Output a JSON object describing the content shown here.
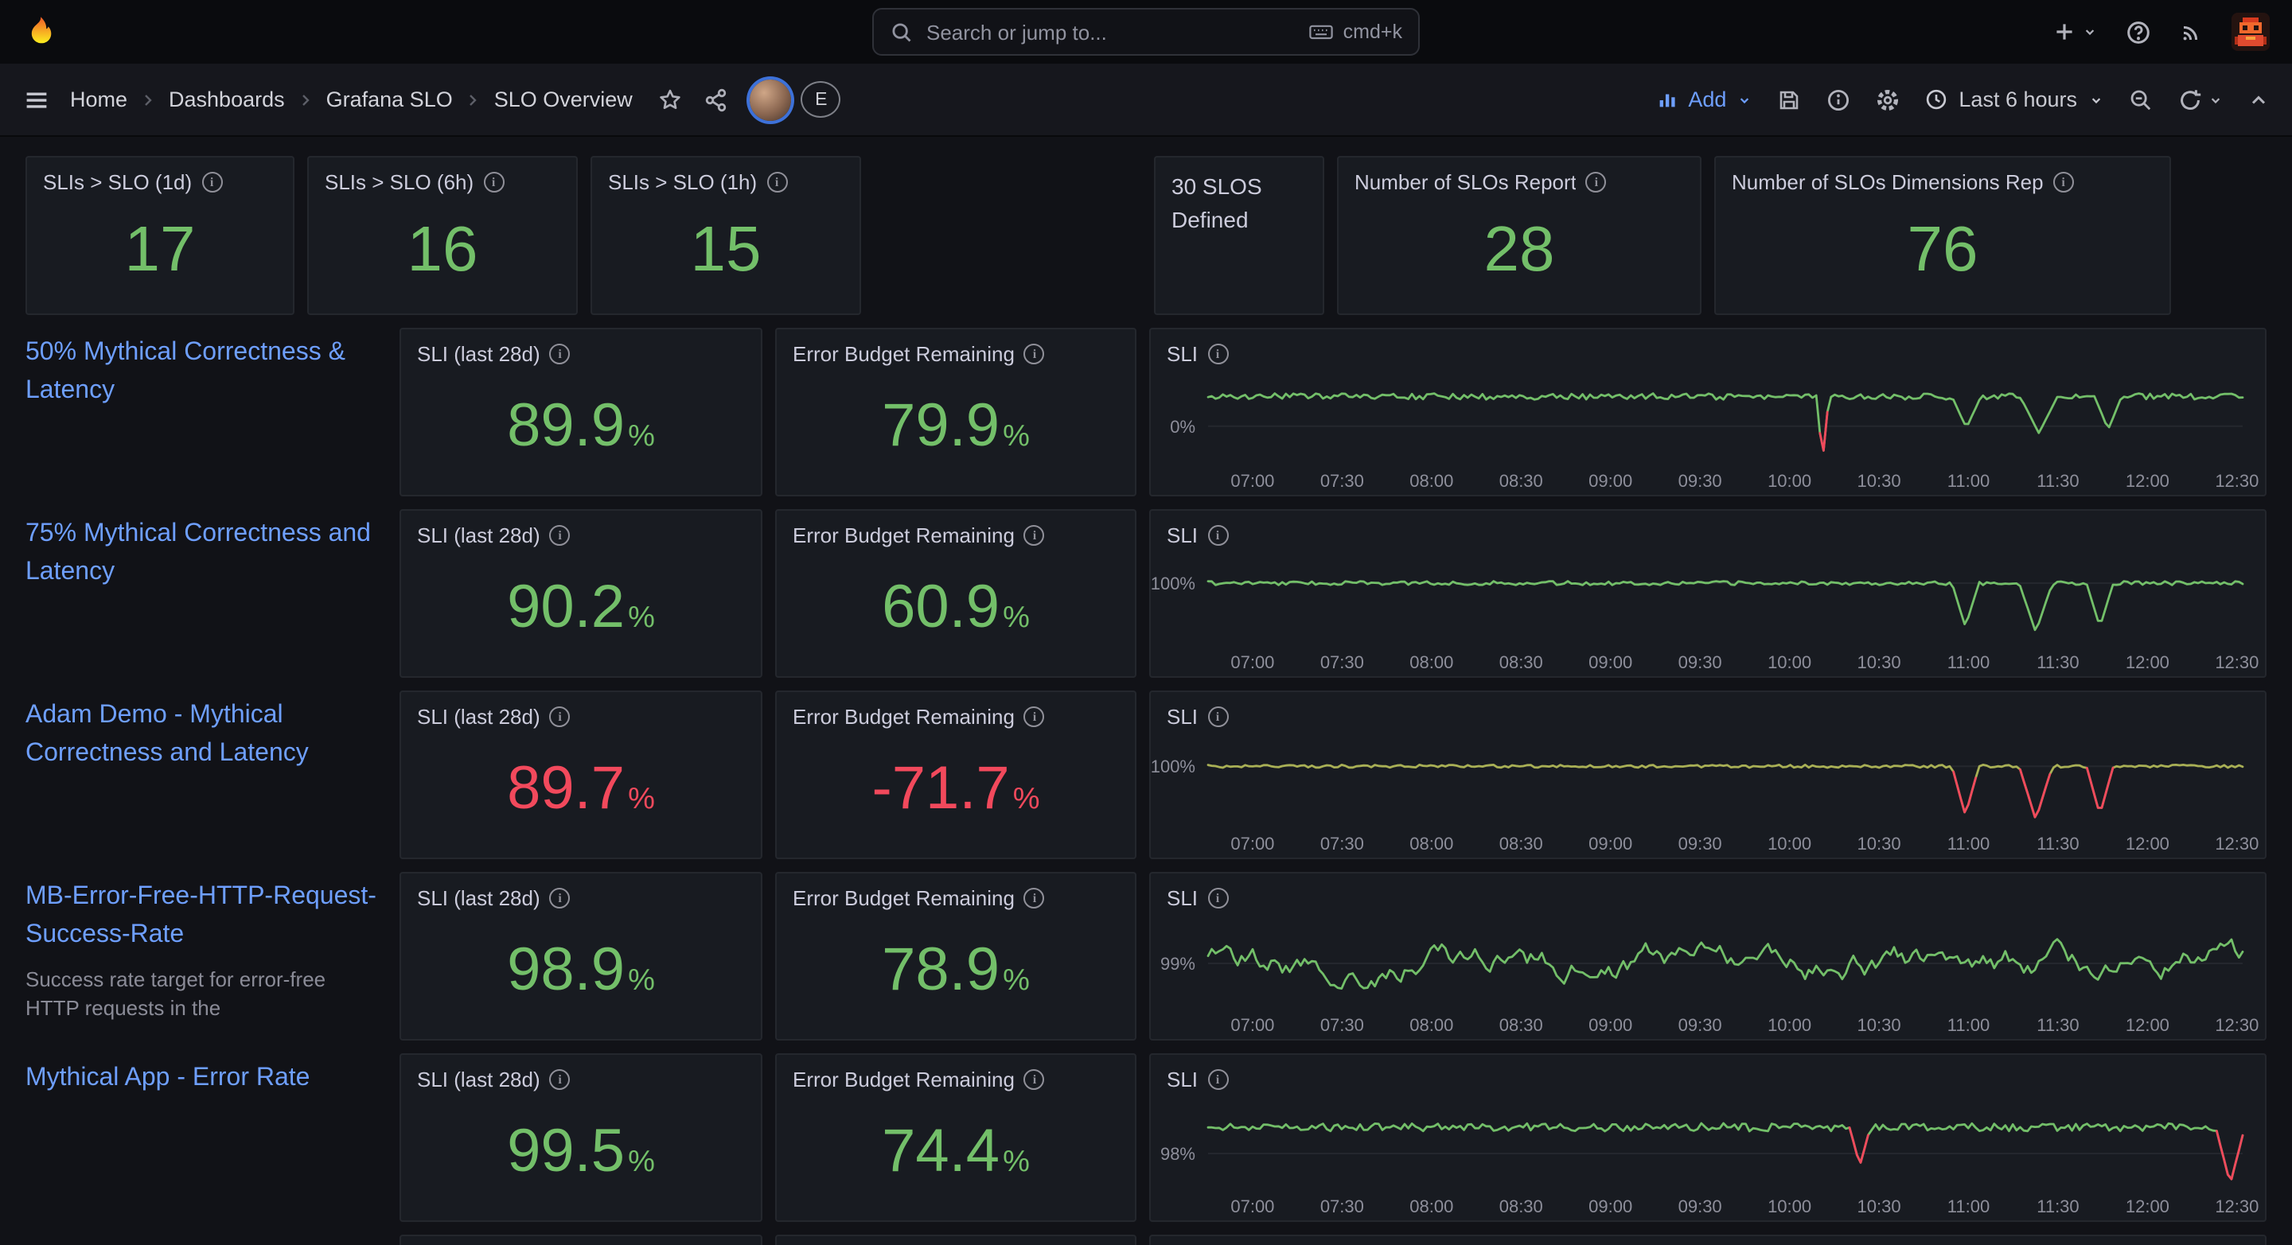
{
  "topbar": {
    "search_placeholder": "Search or jump to...",
    "shortcut_label": "cmd+k"
  },
  "breadcrumb": {
    "items": [
      "Home",
      "Dashboards",
      "Grafana SLO",
      "SLO Overview"
    ],
    "avatar_badge": "E"
  },
  "toolbar": {
    "add_label": "Add",
    "time_range_label": "Last 6 hours"
  },
  "unit_percent": "%",
  "panel_titles": {
    "sli_28d": "SLI (last 28d)",
    "error_budget": "Error Budget Remaining",
    "sli": "SLI"
  },
  "top_stats": [
    {
      "title": "SLIs > SLO (1d)",
      "value": "17"
    },
    {
      "title": "SLIs > SLO (6h)",
      "value": "16"
    },
    {
      "title": "SLIs > SLO (1h)",
      "value": "15"
    }
  ],
  "defined_panel": {
    "text": "30 SLOS Defined"
  },
  "report_stats": [
    {
      "title": "Number of SLOs Report",
      "value": "28"
    },
    {
      "title": "Number of SLOs Dimensions Rep",
      "value": "76"
    }
  ],
  "x_ticks": [
    "07:00",
    "07:30",
    "08:00",
    "08:30",
    "09:00",
    "09:30",
    "10:00",
    "10:30",
    "11:00",
    "11:30",
    "12:00",
    "12:30"
  ],
  "colors": {
    "green": "#73BF69",
    "red": "#F2495C",
    "link_blue": "#6E9FFF",
    "olive": "#A9B055",
    "orange": "#F05A28"
  },
  "rows": [
    {
      "title": "50% Mythical Correctness & Latency",
      "description": "",
      "sli": {
        "value": "89.9",
        "color": "green"
      },
      "budget": {
        "value": "79.9",
        "color": "green"
      },
      "chart": {
        "y_label": "0%",
        "y_pos": 0.58,
        "baseline": 0.24,
        "noise": 0.035,
        "seed": 42,
        "line": "#73BF69",
        "events": [
          {
            "x": 0.594,
            "to": 0.98,
            "w": 0.006,
            "color": "#F2495C"
          },
          {
            "x": 0.733,
            "to": 0.6,
            "w": 0.014
          },
          {
            "x": 0.803,
            "to": 0.66,
            "w": 0.018
          },
          {
            "x": 0.87,
            "to": 0.62,
            "w": 0.013
          }
        ]
      }
    },
    {
      "title": "75% Mythical Correctness and Latency",
      "description": "",
      "sli": {
        "value": "90.2",
        "color": "green"
      },
      "budget": {
        "value": "60.9",
        "color": "green"
      },
      "chart": {
        "y_label": "100%",
        "y_pos": 0.3,
        "baseline": 0.3,
        "noise": 0.022,
        "seed": 7,
        "line": "#73BF69",
        "events": [
          {
            "x": 0.732,
            "to": 0.8,
            "w": 0.013
          },
          {
            "x": 0.8,
            "to": 0.86,
            "w": 0.016
          },
          {
            "x": 0.862,
            "to": 0.8,
            "w": 0.013
          }
        ]
      }
    },
    {
      "title": "Adam Demo - Mythical Correctness and Latency",
      "description": "",
      "sli": {
        "value": "89.7",
        "color": "red"
      },
      "budget": {
        "value": "-71.7",
        "color": "red"
      },
      "chart": {
        "y_label": "100%",
        "y_pos": 0.32,
        "baseline": 0.32,
        "noise": 0.016,
        "seed": 19,
        "line": "#A9B055",
        "events": [
          {
            "x": 0.732,
            "to": 0.88,
            "w": 0.013,
            "color": "#F2495C"
          },
          {
            "x": 0.8,
            "to": 0.93,
            "w": 0.016,
            "color": "#F2495C"
          },
          {
            "x": 0.862,
            "to": 0.87,
            "w": 0.013,
            "color": "#F2495C"
          }
        ]
      }
    },
    {
      "title": "MB-Error-Free-HTTP-Request-Success-Rate",
      "description": "Success rate target for error-free HTTP requests in the",
      "sli": {
        "value": "98.9",
        "color": "green"
      },
      "budget": {
        "value": "78.9",
        "color": "green"
      },
      "chart": {
        "y_label": "99%",
        "y_pos": 0.5,
        "baseline": 0.5,
        "noise": 0.16,
        "walk": true,
        "seed": 23,
        "line": "#73BF69",
        "events": []
      }
    },
    {
      "title": "Mythical App - Error Rate",
      "description": "",
      "sli": {
        "value": "99.5",
        "color": "green"
      },
      "budget": {
        "value": "74.4",
        "color": "green"
      },
      "chart": {
        "y_label": "98%",
        "y_pos": 0.6,
        "baseline": 0.3,
        "noise": 0.045,
        "seed": 11,
        "line": "#73BF69",
        "events": [
          {
            "x": 0.63,
            "to": 0.74,
            "w": 0.01,
            "color": "#F2495C"
          },
          {
            "x": 0.988,
            "to": 0.95,
            "w": 0.014,
            "color": "#F2495C"
          }
        ]
      }
    }
  ]
}
